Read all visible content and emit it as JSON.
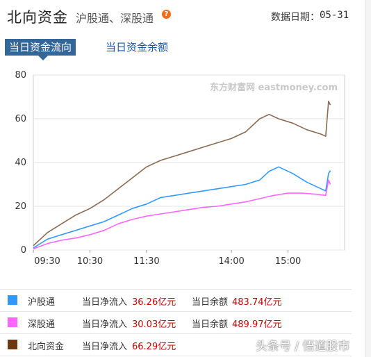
{
  "header": {
    "title": "北向资金",
    "subtitle": "沪股通、深股通",
    "help_glyph": "?",
    "date_label": "数据日期：",
    "date_value": "05-31"
  },
  "tabs": [
    {
      "label": "当日资金流向",
      "active": true
    },
    {
      "label": "当日资金余额",
      "active": false
    }
  ],
  "chart_data": {
    "type": "line",
    "title": "",
    "xlabel": "",
    "ylabel": "",
    "ylim": [
      0,
      80
    ],
    "yticks": [
      0,
      20,
      40,
      60,
      80
    ],
    "x_ticks": [
      "09:30",
      "10:30",
      "11:30",
      "14:00",
      "15:00"
    ],
    "x_tick_minutes": [
      0,
      60,
      120,
      210,
      270
    ],
    "x_range_minutes": [
      0,
      330
    ],
    "grid": "horizontal",
    "logo": "东方财富网 eastmoney.com",
    "series": [
      {
        "name": "沪股通",
        "color": "#3399ff",
        "points": [
          [
            0,
            1
          ],
          [
            15,
            5
          ],
          [
            30,
            7
          ],
          [
            45,
            9
          ],
          [
            60,
            11
          ],
          [
            75,
            13
          ],
          [
            90,
            16
          ],
          [
            105,
            19
          ],
          [
            120,
            21
          ],
          [
            135,
            24
          ],
          [
            150,
            25
          ],
          [
            165,
            26
          ],
          [
            180,
            27
          ],
          [
            195,
            28
          ],
          [
            210,
            29
          ],
          [
            225,
            30
          ],
          [
            240,
            32
          ],
          [
            250,
            36
          ],
          [
            260,
            38
          ],
          [
            275,
            35
          ],
          [
            290,
            31
          ],
          [
            305,
            28
          ],
          [
            310,
            27
          ],
          [
            313,
            35
          ],
          [
            315,
            36.3
          ]
        ]
      },
      {
        "name": "深股通",
        "color": "#ff66ff",
        "points": [
          [
            0,
            0.5
          ],
          [
            15,
            3
          ],
          [
            30,
            4.5
          ],
          [
            45,
            5.5
          ],
          [
            60,
            7
          ],
          [
            75,
            9
          ],
          [
            90,
            12
          ],
          [
            105,
            14
          ],
          [
            120,
            15.5
          ],
          [
            135,
            16.5
          ],
          [
            150,
            17.5
          ],
          [
            165,
            18.5
          ],
          [
            180,
            19.5
          ],
          [
            195,
            20
          ],
          [
            210,
            21
          ],
          [
            225,
            22
          ],
          [
            240,
            23.5
          ],
          [
            255,
            25
          ],
          [
            270,
            26
          ],
          [
            285,
            26
          ],
          [
            300,
            25.5
          ],
          [
            310,
            25
          ],
          [
            313,
            32
          ],
          [
            315,
            30
          ]
        ]
      },
      {
        "name": "北向资金",
        "color": "#8a6a52",
        "points": [
          [
            0,
            2
          ],
          [
            15,
            8
          ],
          [
            30,
            12
          ],
          [
            45,
            16
          ],
          [
            60,
            19
          ],
          [
            75,
            23
          ],
          [
            90,
            28
          ],
          [
            105,
            33
          ],
          [
            120,
            38
          ],
          [
            135,
            41
          ],
          [
            150,
            43
          ],
          [
            165,
            45
          ],
          [
            180,
            47
          ],
          [
            195,
            49
          ],
          [
            210,
            51
          ],
          [
            225,
            54
          ],
          [
            240,
            60
          ],
          [
            250,
            62
          ],
          [
            260,
            60
          ],
          [
            275,
            58
          ],
          [
            290,
            55
          ],
          [
            305,
            53
          ],
          [
            310,
            52
          ],
          [
            313,
            68
          ],
          [
            315,
            66.3
          ]
        ]
      }
    ]
  },
  "legend": [
    {
      "name": "沪股通",
      "color": "#3399ff",
      "flow_label": "当日净流入",
      "flow_value": "36.26亿元",
      "balance_label": "当日余额",
      "balance_value": "483.74亿元"
    },
    {
      "name": "深股通",
      "color": "#ff66ff",
      "flow_label": "当日净流入",
      "flow_value": "30.03亿元",
      "balance_label": "当日余额",
      "balance_value": "489.97亿元"
    },
    {
      "name": "北向资金",
      "color": "#6b3a10",
      "flow_label": "当日净流入",
      "flow_value": "66.29亿元",
      "balance_label": "",
      "balance_value": ""
    }
  ],
  "watermark": "头条号 / 悟道股市"
}
